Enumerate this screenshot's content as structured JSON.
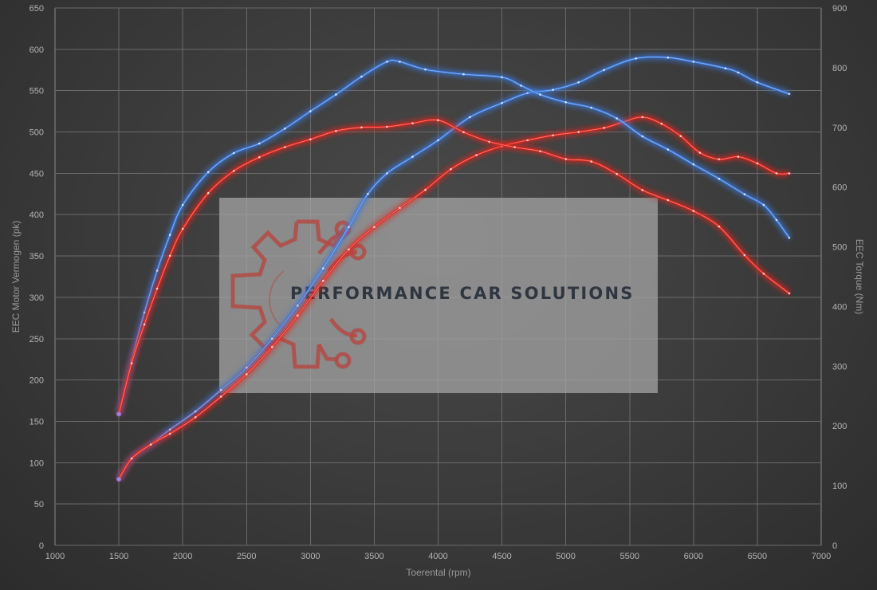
{
  "chart_data": {
    "type": "line",
    "xlabel": "Toerental (rpm)",
    "ylabel_left": "EEC Motor Vermogen (pk)",
    "ylabel_right": "EEC Torque (Nm)",
    "xlim": [
      1000,
      7000
    ],
    "ylim_left": [
      0,
      650
    ],
    "ylim_right": [
      0,
      900
    ],
    "x_ticks": [
      1000,
      1500,
      2000,
      2500,
      3000,
      3500,
      4000,
      4500,
      5000,
      5500,
      6000,
      6500,
      7000
    ],
    "y_left_ticks": [
      0,
      50,
      100,
      150,
      200,
      250,
      300,
      350,
      400,
      450,
      500,
      550,
      600,
      650
    ],
    "y_right_ticks": [
      0,
      100,
      200,
      300,
      400,
      500,
      600,
      700,
      800,
      900
    ],
    "grid": true,
    "series": [
      {
        "axis": "left",
        "color": "#3a78d8",
        "points": [
          [
            1500,
            80
          ],
          [
            1600,
            105
          ],
          [
            1750,
            122
          ],
          [
            1900,
            140
          ],
          [
            2100,
            162
          ],
          [
            2300,
            188
          ],
          [
            2500,
            215
          ],
          [
            2700,
            250
          ],
          [
            2900,
            290
          ],
          [
            3100,
            335
          ],
          [
            3300,
            385
          ],
          [
            3450,
            425
          ],
          [
            3600,
            450
          ],
          [
            3800,
            470
          ],
          [
            4000,
            490
          ],
          [
            4250,
            518
          ],
          [
            4500,
            535
          ],
          [
            4700,
            547
          ],
          [
            4900,
            551
          ],
          [
            5100,
            560
          ],
          [
            5300,
            575
          ],
          [
            5550,
            589
          ],
          [
            5800,
            590
          ],
          [
            6000,
            585
          ],
          [
            6250,
            577
          ],
          [
            6350,
            572
          ],
          [
            6500,
            560
          ],
          [
            6750,
            546
          ]
        ]
      },
      {
        "axis": "left",
        "color": "#e0251f",
        "points": [
          [
            1500,
            80
          ],
          [
            1600,
            105
          ],
          [
            1750,
            122
          ],
          [
            1900,
            135
          ],
          [
            2100,
            155
          ],
          [
            2300,
            180
          ],
          [
            2500,
            207
          ],
          [
            2700,
            240
          ],
          [
            2900,
            278
          ],
          [
            3100,
            320
          ],
          [
            3300,
            358
          ],
          [
            3500,
            385
          ],
          [
            3700,
            408
          ],
          [
            3900,
            430
          ],
          [
            4100,
            455
          ],
          [
            4300,
            472
          ],
          [
            4500,
            483
          ],
          [
            4700,
            490
          ],
          [
            4900,
            496
          ],
          [
            5100,
            500
          ],
          [
            5300,
            505
          ],
          [
            5450,
            512
          ],
          [
            5600,
            518
          ],
          [
            5750,
            510
          ],
          [
            5900,
            495
          ],
          [
            6050,
            475
          ],
          [
            6200,
            467
          ],
          [
            6350,
            470
          ],
          [
            6500,
            462
          ],
          [
            6650,
            450
          ],
          [
            6750,
            450
          ]
        ]
      },
      {
        "axis": "right",
        "color": "#3a78d8",
        "points": [
          [
            1500,
            220
          ],
          [
            1600,
            310
          ],
          [
            1700,
            390
          ],
          [
            1800,
            460
          ],
          [
            1900,
            520
          ],
          [
            2000,
            570
          ],
          [
            2200,
            625
          ],
          [
            2400,
            657
          ],
          [
            2600,
            673
          ],
          [
            2800,
            698
          ],
          [
            3000,
            727
          ],
          [
            3200,
            755
          ],
          [
            3400,
            785
          ],
          [
            3600,
            810
          ],
          [
            3700,
            810
          ],
          [
            3900,
            797
          ],
          [
            4200,
            789
          ],
          [
            4500,
            784
          ],
          [
            4650,
            770
          ],
          [
            4800,
            755
          ],
          [
            5000,
            742
          ],
          [
            5200,
            733
          ],
          [
            5400,
            715
          ],
          [
            5600,
            685
          ],
          [
            5800,
            663
          ],
          [
            6000,
            638
          ],
          [
            6200,
            614
          ],
          [
            6400,
            588
          ],
          [
            6550,
            570
          ],
          [
            6650,
            545
          ],
          [
            6750,
            515
          ]
        ]
      },
      {
        "axis": "right",
        "color": "#e0251f",
        "points": [
          [
            1500,
            220
          ],
          [
            1600,
            305
          ],
          [
            1700,
            370
          ],
          [
            1800,
            430
          ],
          [
            1900,
            485
          ],
          [
            2000,
            530
          ],
          [
            2200,
            590
          ],
          [
            2400,
            627
          ],
          [
            2600,
            650
          ],
          [
            2800,
            667
          ],
          [
            3000,
            680
          ],
          [
            3200,
            694
          ],
          [
            3400,
            700
          ],
          [
            3600,
            701
          ],
          [
            3800,
            707
          ],
          [
            4000,
            712
          ],
          [
            4200,
            692
          ],
          [
            4400,
            676
          ],
          [
            4600,
            667
          ],
          [
            4800,
            660
          ],
          [
            5000,
            647
          ],
          [
            5200,
            643
          ],
          [
            5400,
            622
          ],
          [
            5600,
            595
          ],
          [
            5800,
            578
          ],
          [
            6000,
            560
          ],
          [
            6200,
            534
          ],
          [
            6400,
            486
          ],
          [
            6550,
            455
          ],
          [
            6750,
            422
          ]
        ]
      }
    ]
  },
  "watermark": {
    "text": "PERFORMANCE CAR SOLUTIONS",
    "logo_icon": "gear-circuit-icon"
  },
  "colors": {
    "background": "#3a3a3a",
    "grid": "#6a6a6a",
    "blue": "#3a78d8",
    "red": "#e0251f"
  }
}
